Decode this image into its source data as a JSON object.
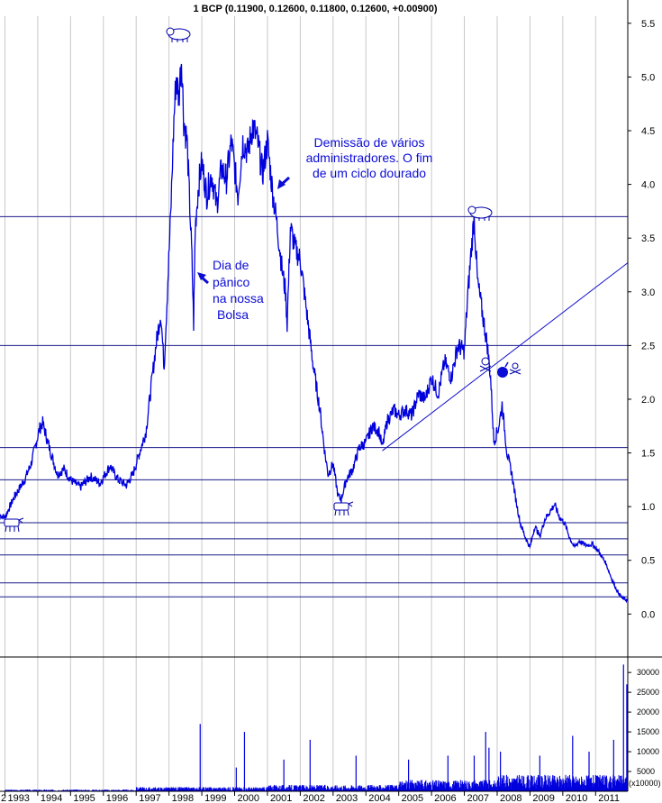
{
  "title": "1 BCP (0.11900, 0.12600, 0.11800, 0.12600, +0.00900)",
  "chart_data": {
    "type": "line",
    "title": "1 BCP (0.11900, 0.12600, 0.11800, 0.12600, +0.00900)",
    "x_start": 1992.85,
    "x_end": 2011.98,
    "ylim": [
      -0.4,
      5.7
    ],
    "y_ticks": [
      0.0,
      0.5,
      1.0,
      1.5,
      2.0,
      2.5,
      3.0,
      3.5,
      4.0,
      4.5,
      5.0,
      5.5
    ],
    "y_tick_labels": [
      "0.0",
      "0.5",
      "1.0",
      "1.5",
      "2.0",
      "2.5",
      "3.0",
      "3.5",
      "4.0",
      "4.5",
      "5.0",
      "5.5"
    ],
    "x_tick_labels": [
      "2",
      "1993",
      "1994",
      "1995",
      "1996",
      "1997",
      "1998",
      "1999",
      "2000",
      "2001",
      "2002",
      "2003",
      "2004",
      "2005",
      "2006",
      "2007",
      "2008",
      "2009",
      "2010",
      "2011"
    ],
    "price_series": {
      "name": "BCP",
      "color": "#0000dd",
      "points": [
        [
          1992.85,
          0.92
        ],
        [
          1993.0,
          0.9
        ],
        [
          1993.3,
          1.1
        ],
        [
          1993.6,
          1.25
        ],
        [
          1993.8,
          1.4
        ],
        [
          1994.05,
          1.72
        ],
        [
          1994.15,
          1.78
        ],
        [
          1994.35,
          1.55
        ],
        [
          1994.6,
          1.3
        ],
        [
          1994.8,
          1.35
        ],
        [
          1995.0,
          1.25
        ],
        [
          1995.3,
          1.18
        ],
        [
          1995.6,
          1.28
        ],
        [
          1995.9,
          1.22
        ],
        [
          1996.2,
          1.38
        ],
        [
          1996.45,
          1.25
        ],
        [
          1996.7,
          1.2
        ],
        [
          1996.9,
          1.3
        ],
        [
          1997.1,
          1.5
        ],
        [
          1997.3,
          1.7
        ],
        [
          1997.45,
          2.1
        ],
        [
          1997.6,
          2.5
        ],
        [
          1997.75,
          2.8
        ],
        [
          1997.85,
          2.3
        ],
        [
          1997.95,
          3.0
        ],
        [
          1998.05,
          3.7
        ],
        [
          1998.15,
          4.6
        ],
        [
          1998.22,
          5.0
        ],
        [
          1998.3,
          4.8
        ],
        [
          1998.38,
          5.2
        ],
        [
          1998.45,
          4.6
        ],
        [
          1998.55,
          4.4
        ],
        [
          1998.62,
          3.9
        ],
        [
          1998.7,
          3.3
        ],
        [
          1998.75,
          2.7
        ],
        [
          1998.8,
          3.6
        ],
        [
          1998.9,
          4.0
        ],
        [
          1999.0,
          4.2
        ],
        [
          1999.15,
          3.9
        ],
        [
          1999.3,
          4.1
        ],
        [
          1999.45,
          3.8
        ],
        [
          1999.6,
          4.15
        ],
        [
          1999.75,
          4.05
        ],
        [
          1999.9,
          4.4
        ],
        [
          2000.1,
          3.9
        ],
        [
          2000.25,
          4.4
        ],
        [
          2000.4,
          4.3
        ],
        [
          2000.55,
          4.55
        ],
        [
          2000.7,
          4.4
        ],
        [
          2000.85,
          4.1
        ],
        [
          2001.0,
          4.4
        ],
        [
          2001.15,
          3.95
        ],
        [
          2001.3,
          3.6
        ],
        [
          2001.45,
          3.2
        ],
        [
          2001.55,
          3.0
        ],
        [
          2001.6,
          2.7
        ],
        [
          2001.7,
          3.6
        ],
        [
          2001.85,
          3.4
        ],
        [
          2002.0,
          3.3
        ],
        [
          2002.2,
          2.8
        ],
        [
          2002.4,
          2.3
        ],
        [
          2002.6,
          1.9
        ],
        [
          2002.75,
          1.5
        ],
        [
          2002.85,
          1.3
        ],
        [
          2003.0,
          1.4
        ],
        [
          2003.15,
          1.1
        ],
        [
          2003.25,
          1.07
        ],
        [
          2003.4,
          1.25
        ],
        [
          2003.6,
          1.35
        ],
        [
          2003.8,
          1.55
        ],
        [
          2004.0,
          1.6
        ],
        [
          2004.2,
          1.75
        ],
        [
          2004.4,
          1.7
        ],
        [
          2004.5,
          1.55
        ],
        [
          2004.65,
          1.8
        ],
        [
          2004.85,
          1.9
        ],
        [
          2005.0,
          1.85
        ],
        [
          2005.2,
          1.9
        ],
        [
          2005.4,
          1.85
        ],
        [
          2005.6,
          2.05
        ],
        [
          2005.8,
          2.0
        ],
        [
          2006.0,
          2.2
        ],
        [
          2006.2,
          2.05
        ],
        [
          2006.4,
          2.35
        ],
        [
          2006.6,
          2.2
        ],
        [
          2006.8,
          2.5
        ],
        [
          2007.0,
          2.45
        ],
        [
          2007.1,
          2.95
        ],
        [
          2007.2,
          3.35
        ],
        [
          2007.3,
          3.7
        ],
        [
          2007.4,
          3.1
        ],
        [
          2007.55,
          2.8
        ],
        [
          2007.7,
          2.5
        ],
        [
          2007.8,
          2.2
        ],
        [
          2007.9,
          1.6
        ],
        [
          2008.05,
          1.75
        ],
        [
          2008.15,
          1.95
        ],
        [
          2008.3,
          1.5
        ],
        [
          2008.45,
          1.3
        ],
        [
          2008.55,
          1.1
        ],
        [
          2008.7,
          0.85
        ],
        [
          2008.85,
          0.72
        ],
        [
          2009.0,
          0.62
        ],
        [
          2009.15,
          0.82
        ],
        [
          2009.3,
          0.72
        ],
        [
          2009.45,
          0.88
        ],
        [
          2009.6,
          0.95
        ],
        [
          2009.75,
          1.02
        ],
        [
          2009.9,
          0.9
        ],
        [
          2010.05,
          0.85
        ],
        [
          2010.2,
          0.72
        ],
        [
          2010.35,
          0.62
        ],
        [
          2010.5,
          0.68
        ],
        [
          2010.7,
          0.64
        ],
        [
          2010.9,
          0.65
        ],
        [
          2011.1,
          0.58
        ],
        [
          2011.3,
          0.48
        ],
        [
          2011.5,
          0.32
        ],
        [
          2011.65,
          0.22
        ],
        [
          2011.8,
          0.15
        ],
        [
          2011.98,
          0.126
        ]
      ]
    },
    "horizontal_levels": [
      3.7,
      2.5,
      1.55,
      1.25,
      0.85,
      0.7,
      0.55,
      0.29,
      0.16
    ],
    "trendline": {
      "from": [
        2004.5,
        1.52
      ],
      "to": [
        2011.98,
        3.27
      ]
    },
    "volume": {
      "ylim": [
        0,
        33000
      ],
      "ticks": [
        5000,
        10000,
        15000,
        20000,
        25000,
        30000
      ],
      "tick_labels": [
        "5000",
        "10000",
        "15000",
        "20000",
        "25000",
        "30000"
      ],
      "unit_label": "(x10000)",
      "spikes": [
        [
          1998.95,
          17000
        ],
        [
          2000.3,
          15000
        ],
        [
          2000.05,
          6000
        ],
        [
          2001.5,
          8000
        ],
        [
          2002.3,
          13000
        ],
        [
          2003.7,
          9000
        ],
        [
          2005.3,
          8000
        ],
        [
          2006.5,
          9000
        ],
        [
          2007.3,
          9000
        ],
        [
          2007.65,
          15000
        ],
        [
          2007.75,
          11000
        ],
        [
          2008.1,
          10000
        ],
        [
          2009.3,
          9000
        ],
        [
          2010.3,
          14000
        ],
        [
          2010.8,
          10000
        ],
        [
          2011.55,
          13000
        ],
        [
          2011.85,
          32000
        ],
        [
          2011.95,
          27000
        ]
      ]
    }
  },
  "annotations": {
    "demissao": [
      "Demissão de vários",
      "administradores. O fim",
      "de um ciclo dourado"
    ],
    "panico": [
      "Dia de",
      "pânico",
      "na nossa",
      "Bolsa"
    ]
  },
  "icons": [
    "bear-icon",
    "bear-icon",
    "bull-icon",
    "bull-icon",
    "skull-icon",
    "bomb-icon",
    "arrow-icon"
  ],
  "colors": {
    "price": "#0000dd",
    "annotation": "#0b0bd6",
    "lines": "#1a1a8a",
    "grid": "#c8c8c8"
  }
}
